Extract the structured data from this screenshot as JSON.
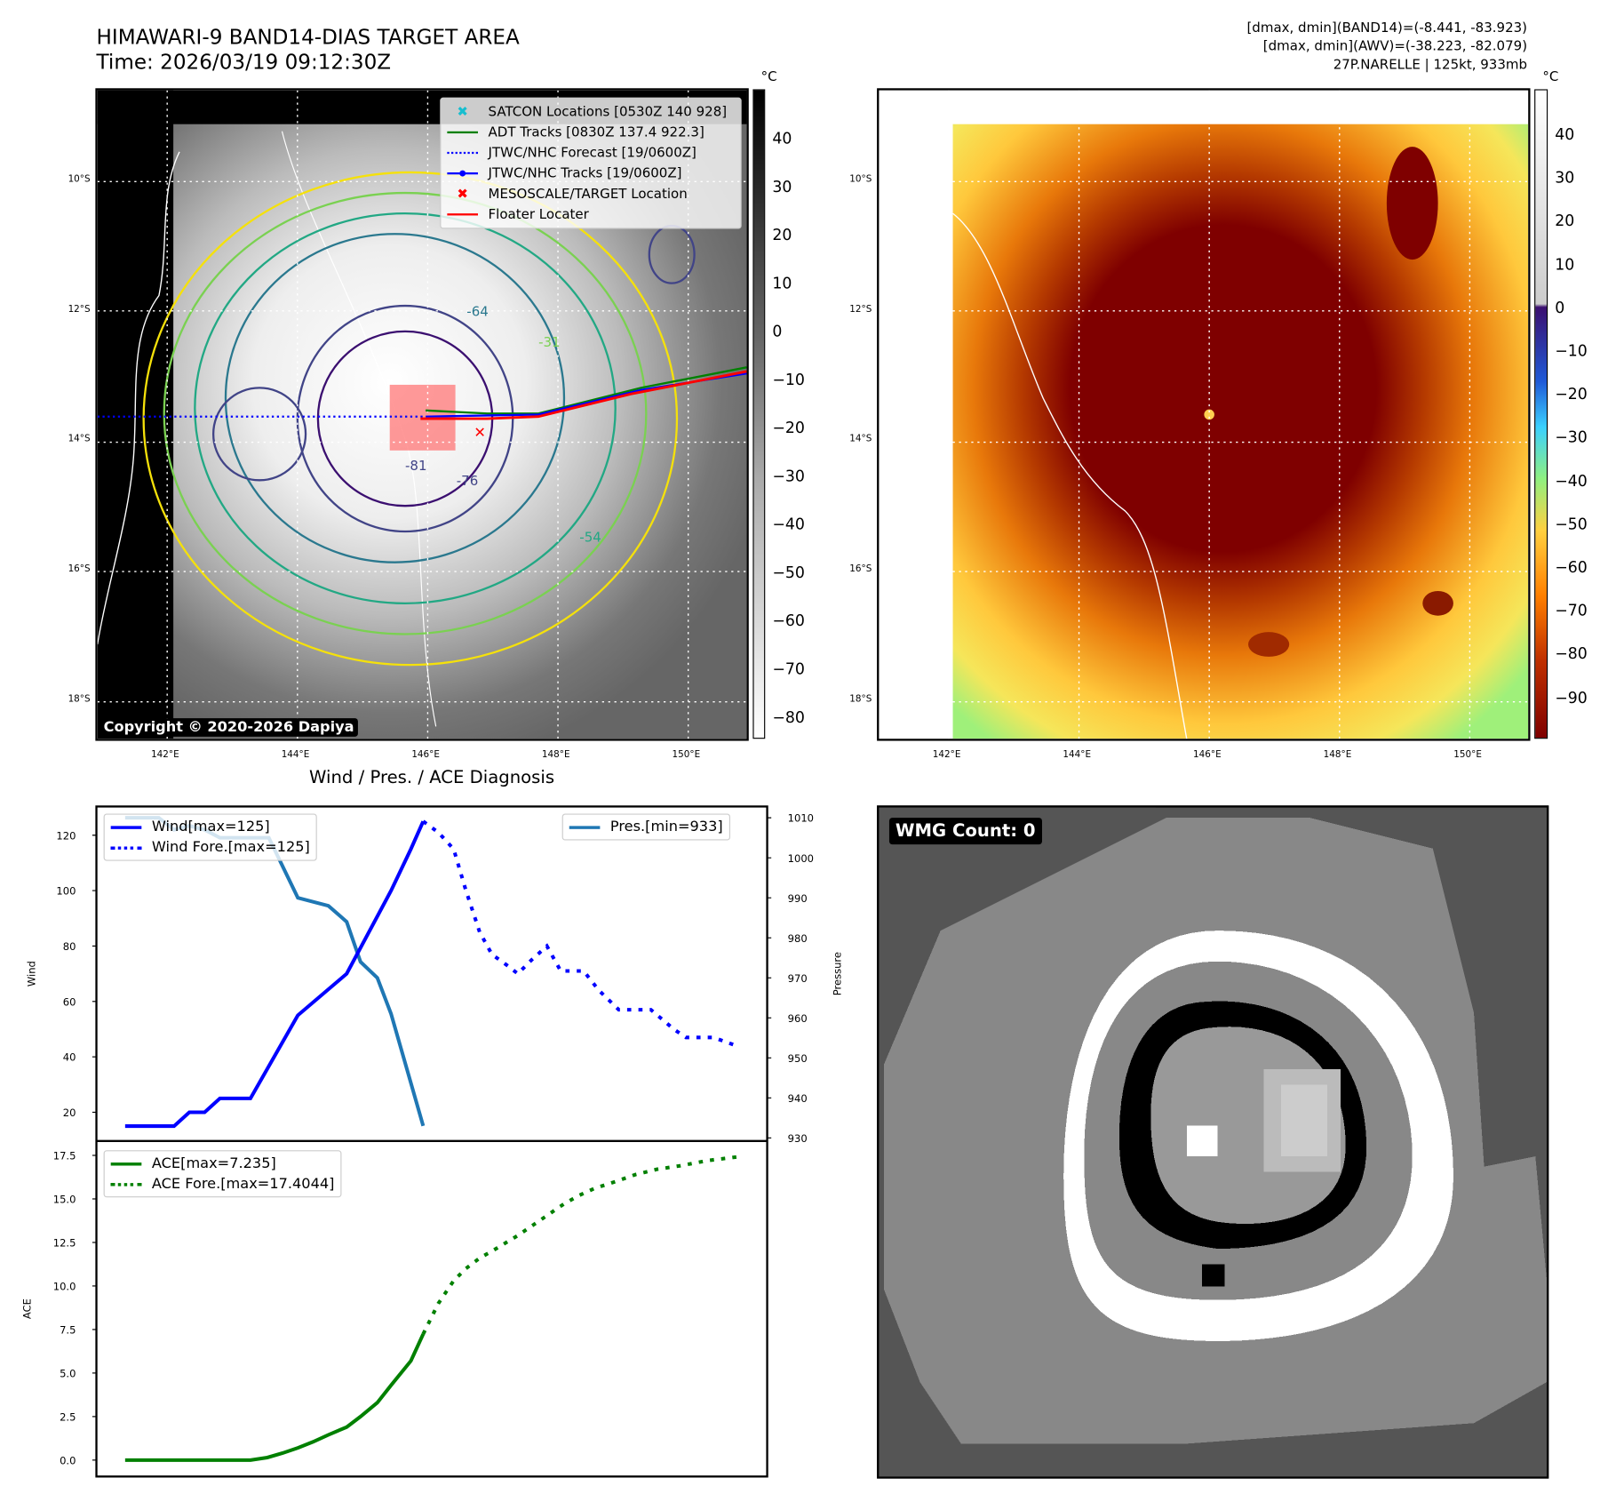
{
  "header": {
    "title_line1": "HIMAWARI-9 BAND14-DIAS TARGET AREA",
    "title_line2": "Time: 2026/03/19 09:12:30Z",
    "stats_line1": "[dmax, dmin](BAND14)=(-8.441, -83.923)",
    "stats_line2": "[dmax, dmin](AWV)=(-38.223, -82.079)",
    "stats_line3": "27P.NARELLE | 125kt, 933mb"
  },
  "map": {
    "lon_ticks": [
      "142°E",
      "144°E",
      "146°E",
      "148°E",
      "150°E"
    ],
    "lat_ticks": [
      "10°S",
      "12°S",
      "14°S",
      "16°S",
      "18°S"
    ],
    "copyright": "Copyright © 2020-2026 Dapiya",
    "contour_labels": [
      "-31",
      "-54",
      "-64",
      "-76",
      "-81"
    ],
    "legend": [
      {
        "label": "SATCON Locations [0530Z 140 928]",
        "color": "#17becf"
      },
      {
        "label": "ADT Tracks [0830Z 137.4 922.3]",
        "color": "#008000"
      },
      {
        "label": "JTWC/NHC Forecast [19/0600Z]",
        "color": "#0000ff"
      },
      {
        "label": "JTWC/NHC Tracks [19/0600Z]",
        "color": "#0000ff"
      },
      {
        "label": "MESOSCALE/TARGET Location",
        "color": "#ff0000"
      },
      {
        "label": "Floater Locater",
        "color": "#ff0000"
      }
    ],
    "colorbar1": {
      "unit": "°C",
      "ticks": [
        "40",
        "30",
        "20",
        "10",
        "0",
        "−10",
        "−20",
        "−30",
        "−40",
        "−50",
        "−60",
        "−70",
        "−80"
      ]
    },
    "colorbar2": {
      "unit": "°C",
      "ticks": [
        "40",
        "30",
        "20",
        "10",
        "0",
        "−10",
        "−20",
        "−30",
        "−40",
        "−50",
        "−60",
        "−70",
        "−80",
        "−90"
      ]
    }
  },
  "wmg": {
    "label": "WMG Count: 0"
  },
  "chart_data": [
    {
      "type": "line",
      "title": "Wind / Pres. / ACE Diagnosis",
      "ylabel": "Wind",
      "y2label": "Pressure",
      "xlim": [
        0,
        40
      ],
      "ylim": [
        10,
        130
      ],
      "y2lim": [
        928,
        1013
      ],
      "yticks": [
        "20",
        "40",
        "60",
        "80",
        "100",
        "120"
      ],
      "y2ticks": [
        "930",
        "940",
        "950",
        "960",
        "970",
        "980",
        "990",
        "1000",
        "1010"
      ],
      "series": [
        {
          "name": "Wind[max=125]",
          "axis": "left",
          "color": "#0000ff",
          "style": "solid",
          "points": [
            [
              0,
              15
            ],
            [
              3.2,
              15
            ],
            [
              4.2,
              20
            ],
            [
              5.2,
              20
            ],
            [
              6.2,
              25
            ],
            [
              8.2,
              25
            ],
            [
              11.3,
              55
            ],
            [
              14.5,
              70
            ],
            [
              17.4,
              100
            ],
            [
              18.7,
              115
            ],
            [
              19.5,
              125
            ]
          ]
        },
        {
          "name": "Wind Fore.[max=125]",
          "axis": "left",
          "color": "#0000ff",
          "style": "dotted",
          "points": [
            [
              19.5,
              125
            ],
            [
              20.5,
              121
            ],
            [
              21.5,
              115
            ],
            [
              22.3,
              100
            ],
            [
              23.2,
              85
            ],
            [
              24,
              77
            ],
            [
              25,
              73
            ],
            [
              25.7,
              70
            ],
            [
              26.6,
              75
            ],
            [
              27.6,
              80
            ],
            [
              28.5,
              71
            ],
            [
              30,
              71
            ],
            [
              31,
              64
            ],
            [
              32.3,
              57
            ],
            [
              34.4,
              57
            ],
            [
              35.9,
              50
            ],
            [
              36.7,
              47
            ],
            [
              38.5,
              47
            ],
            [
              40,
              44
            ]
          ]
        },
        {
          "name": "Pres.[min=933]",
          "axis": "right",
          "color": "#1f77b4",
          "style": "solid",
          "points": [
            [
              0,
              1010
            ],
            [
              2.2,
              1010
            ],
            [
              3.2,
              1007
            ],
            [
              4.2,
              1008
            ],
            [
              5.2,
              1007
            ],
            [
              6.2,
              1005
            ],
            [
              9.4,
              1005
            ],
            [
              11.3,
              990
            ],
            [
              13.3,
              988
            ],
            [
              14.5,
              984
            ],
            [
              15.4,
              974
            ],
            [
              16.5,
              970
            ],
            [
              17.4,
              961
            ],
            [
              19.5,
              933
            ]
          ]
        }
      ]
    },
    {
      "type": "line",
      "ylabel": "ACE",
      "xlim": [
        0,
        40
      ],
      "ylim": [
        -0.9,
        18.4
      ],
      "yticks": [
        "0.0",
        "2.5",
        "5.0",
        "7.5",
        "10.0",
        "12.5",
        "15.0",
        "17.5"
      ],
      "series": [
        {
          "name": "ACE[max=7.235]",
          "color": "#008000",
          "style": "solid",
          "points": [
            [
              0,
              0
            ],
            [
              8.2,
              0
            ],
            [
              9.3,
              0.15
            ],
            [
              10.3,
              0.4
            ],
            [
              11.3,
              0.7
            ],
            [
              12.3,
              1.05
            ],
            [
              13.3,
              1.45
            ],
            [
              14.5,
              1.9
            ],
            [
              15.4,
              2.5
            ],
            [
              16.5,
              3.3
            ],
            [
              17.4,
              4.3
            ],
            [
              18.7,
              5.7
            ],
            [
              19.5,
              7.235
            ]
          ]
        },
        {
          "name": "ACE Fore.[max=17.4044]",
          "color": "#008000",
          "style": "dotted",
          "points": [
            [
              19.5,
              7.235
            ],
            [
              20.5,
              9
            ],
            [
              21.5,
              10.3
            ],
            [
              22.3,
              11
            ],
            [
              23.2,
              11.6
            ],
            [
              24,
              12
            ],
            [
              25.7,
              12.9
            ],
            [
              26.7,
              13.5
            ],
            [
              27.7,
              14.1
            ],
            [
              28.7,
              14.7
            ],
            [
              29.7,
              15.2
            ],
            [
              30.7,
              15.6
            ],
            [
              32.1,
              16
            ],
            [
              33.4,
              16.4
            ],
            [
              34.8,
              16.7
            ],
            [
              36.3,
              16.9
            ],
            [
              38.1,
              17.2
            ],
            [
              40,
              17.4044
            ]
          ]
        }
      ]
    }
  ]
}
